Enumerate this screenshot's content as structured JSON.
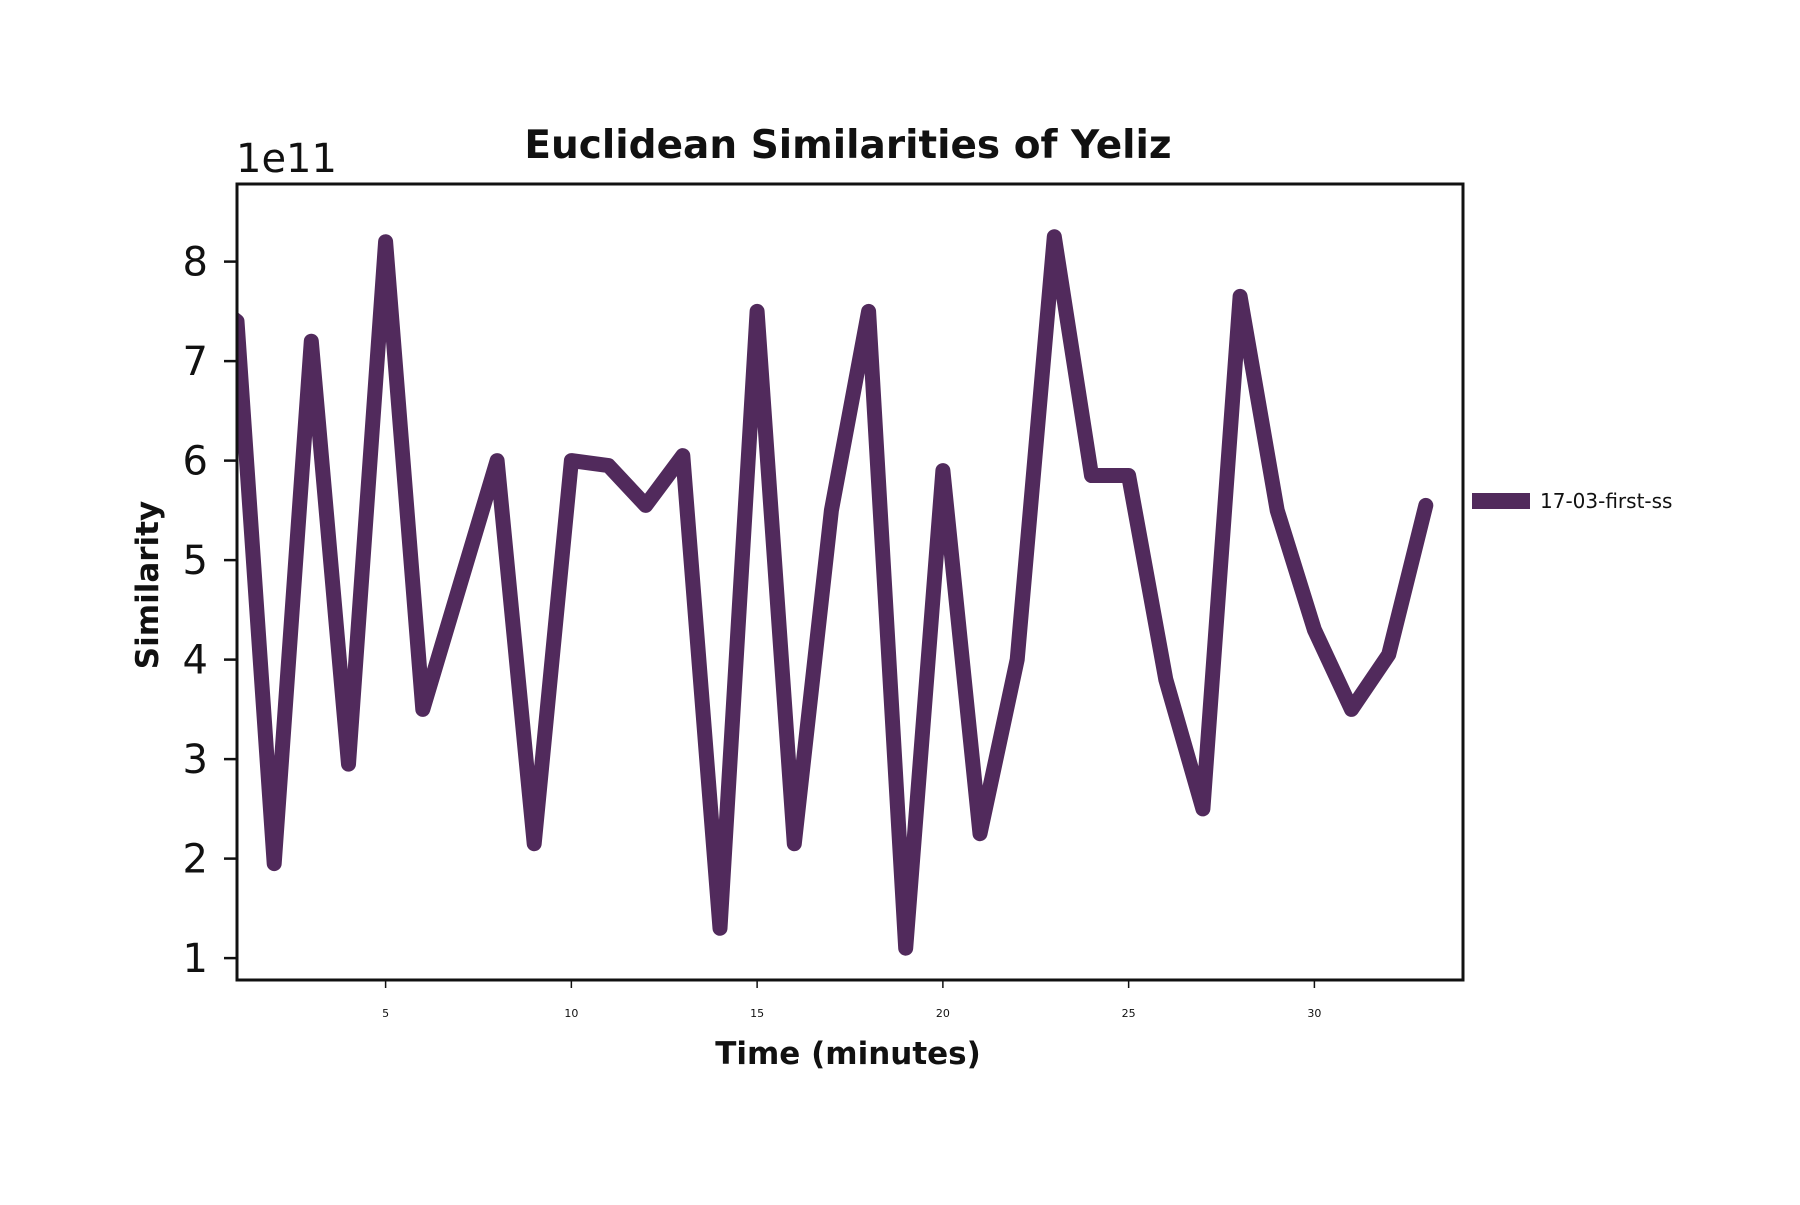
{
  "chart_data": {
    "type": "line",
    "title": "Euclidean Similarities of Yeliz",
    "xlabel": "Time (minutes)",
    "ylabel": "Similarity",
    "y_offset_label": "1e11",
    "xlim": [
      1,
      34
    ],
    "ylim": [
      0.78,
      8.78
    ],
    "xticks": [
      5,
      10,
      15,
      20,
      25,
      30
    ],
    "yticks": [
      1,
      2,
      3,
      4,
      5,
      6,
      7,
      8
    ],
    "grid": false,
    "legend_position": "right",
    "series": [
      {
        "name": "17-03-first-ss",
        "color": "#512a5c",
        "x": [
          0,
          1,
          2,
          3,
          4,
          5,
          6,
          7,
          8,
          9,
          10,
          11,
          12,
          13,
          14,
          15,
          16,
          17,
          18,
          19,
          20,
          21,
          22,
          23,
          24,
          25,
          26,
          27,
          28,
          29,
          30,
          31,
          32,
          33
        ],
        "y": [
          7.7,
          7.4,
          1.95,
          7.2,
          2.95,
          8.2,
          3.5,
          4.75,
          6.0,
          2.15,
          6.0,
          5.95,
          5.55,
          6.05,
          1.3,
          7.5,
          2.15,
          5.5,
          7.5,
          1.1,
          5.9,
          2.25,
          4.0,
          8.25,
          5.85,
          5.85,
          3.8,
          2.5,
          7.65,
          5.5,
          4.3,
          3.5,
          4.05,
          5.55
        ]
      }
    ]
  }
}
